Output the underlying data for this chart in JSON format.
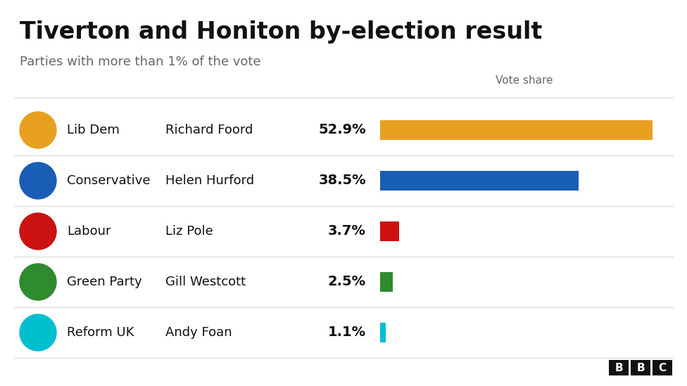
{
  "title": "Tiverton and Honiton by-election result",
  "subtitle": "Parties with more than 1% of the vote",
  "vote_share_label": "Vote share",
  "parties": [
    "Lib Dem",
    "Conservative",
    "Labour",
    "Green Party",
    "Reform UK"
  ],
  "candidates": [
    "Richard Foord",
    "Helen Hurford",
    "Liz Pole",
    "Gill Westcott",
    "Andy Foan"
  ],
  "values": [
    52.9,
    38.5,
    3.7,
    2.5,
    1.1
  ],
  "value_labels": [
    "52.9%",
    "38.5%",
    "3.7%",
    "2.5%",
    "1.1%"
  ],
  "bar_colors": [
    "#E8A020",
    "#1A5DB5",
    "#CC1111",
    "#2E8B2E",
    "#00BFCF"
  ],
  "background_color": "#ffffff",
  "title_fontsize": 24,
  "subtitle_fontsize": 13,
  "bar_max": 56,
  "separator_color": "#dddddd",
  "text_color": "#111111",
  "label_color": "#666666",
  "bbc_bg": "#111111",
  "bbc_text": "#ffffff"
}
